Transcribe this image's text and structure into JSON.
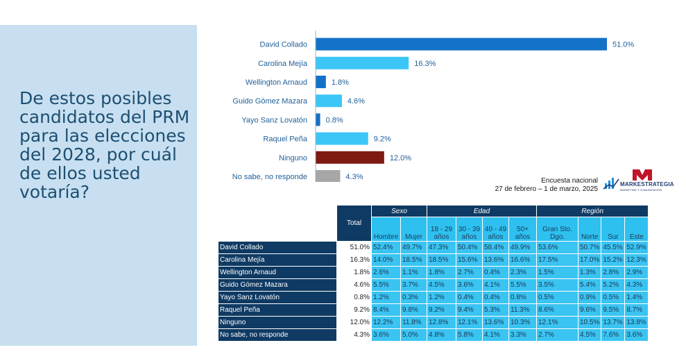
{
  "question": "De estos posibles candidatos del PRM para las elecciones del 2028, por cuál de ellos usted votaría?",
  "survey_note": {
    "line1": "Encuesta nacional",
    "line2": "27 de febrero – 1 de marzo, 2025"
  },
  "logo": {
    "name": "MARKESTRATEGIA",
    "tagline": "MARKETING Y COMUNICACIÓN",
    "accent": "#c0152a",
    "brand": "#1f3a6e"
  },
  "colors": {
    "side_panel": "#c7dff0",
    "header": "#0f3a63",
    "cell": "#3ac4f2"
  },
  "chart_data": {
    "type": "bar",
    "orientation": "horizontal",
    "title": "",
    "xlabel": "",
    "ylabel": "",
    "xlim": [
      0,
      51
    ],
    "grid": false,
    "categories": [
      "David Collado",
      "Carolina Mejía",
      "Wellington Arnaud",
      "Guido Gómez Mazara",
      "Yayo Sanz Lovatón",
      "Raquel Peña",
      "Ninguno",
      "No sabe, no responde"
    ],
    "values": [
      51.0,
      16.3,
      1.8,
      4.6,
      0.8,
      9.2,
      12.0,
      4.3
    ],
    "value_labels": [
      "51.0%",
      "16.3%",
      "1.8%",
      "4.6%",
      "0.8%",
      "9.2%",
      "12.0%",
      "4.3%"
    ],
    "colors": [
      "#1471c8",
      "#3cc6f7",
      "#1471c8",
      "#3cc6f7",
      "#1471c8",
      "#3cc6f7",
      "#7d1a12",
      "#a6a6a6"
    ]
  },
  "table": {
    "total_label": "Total",
    "groups": [
      {
        "label": "",
        "span": 1
      },
      {
        "label": "Sexo",
        "span": 2
      },
      {
        "label": "Edad",
        "span": 4
      },
      {
        "label": "Región",
        "span": 4
      }
    ],
    "columns": [
      [
        "Hombre"
      ],
      [
        "Mujer"
      ],
      [
        "18 - 29",
        "años"
      ],
      [
        "30 - 39",
        "años"
      ],
      [
        "40 - 49",
        "años"
      ],
      [
        "50+",
        "años"
      ],
      [
        "Gran Sto.",
        "Dgo."
      ],
      [
        "Norte"
      ],
      [
        "Sur"
      ],
      [
        "Este"
      ]
    ],
    "rows": [
      {
        "label": "David Collado",
        "total": "51.0%",
        "values": [
          "52.4%",
          "49.7%",
          "47.3%",
          "50.4%",
          "58.4%",
          "49.9%",
          "53.6%",
          "50.7%",
          "45.5%",
          "52.9%"
        ]
      },
      {
        "label": "Carolina Mejía",
        "total": "16.3%",
        "values": [
          "14.0%",
          "18.5%",
          "18.5%",
          "15.6%",
          "13.6%",
          "16.6%",
          "17.5%",
          "17.0%",
          "15.2%",
          "12.3%"
        ]
      },
      {
        "label": "Wellington Arnaud",
        "total": "1.8%",
        "values": [
          "2.6%",
          "1.1%",
          "1.8%",
          "2.7%",
          "0.4%",
          "2.3%",
          "1.5%",
          "1.3%",
          "2.8%",
          "2.9%"
        ]
      },
      {
        "label": "Guido Gómez Mazara",
        "total": "4.6%",
        "values": [
          "5.5%",
          "3.7%",
          "4.5%",
          "3.6%",
          "4.1%",
          "5.5%",
          "3.5%",
          "5.4%",
          "5.2%",
          "4.3%"
        ]
      },
      {
        "label": "Yayo Sanz Lovatón",
        "total": "0.8%",
        "values": [
          "1.2%",
          "0.3%",
          "1.2%",
          "0.4%",
          "0.4%",
          "0.8%",
          "0.5%",
          "0.9%",
          "0.5%",
          "1.4%"
        ]
      },
      {
        "label": "Raquel Peña",
        "total": "9.2%",
        "values": [
          "8.4%",
          "9.8%",
          "9.2%",
          "9.4%",
          "5.3%",
          "11.3%",
          "8.6%",
          "9.6%",
          "9.5%",
          "8.7%"
        ]
      },
      {
        "label": "Ninguno",
        "total": "12.0%",
        "values": [
          "12.2%",
          "11.8%",
          "12.8%",
          "12.1%",
          "13.6%",
          "10.3%",
          "12.1%",
          "10.5%",
          "13.7%",
          "13.8%"
        ]
      },
      {
        "label": "No sabe, no responde",
        "total": "4.3%",
        "values": [
          "3.6%",
          "5.0%",
          "4.8%",
          "5.8%",
          "4.1%",
          "3.3%",
          "2.7%",
          "4.5%",
          "7.6%",
          "3.6%"
        ]
      }
    ]
  }
}
